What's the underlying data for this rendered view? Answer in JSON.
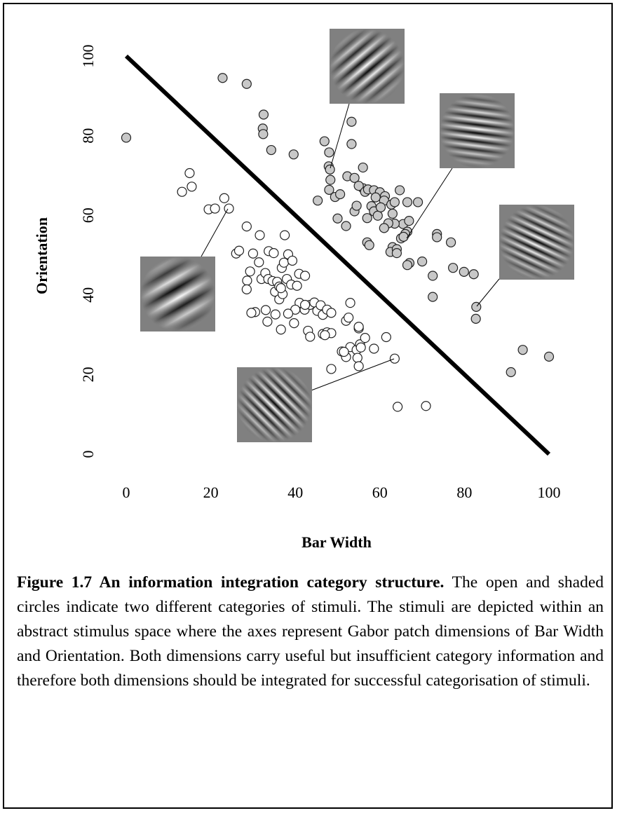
{
  "chart_data": {
    "type": "scatter",
    "xlabel": "Bar Width",
    "ylabel": "Orientation",
    "xlim": [
      0,
      100
    ],
    "ylim": [
      0,
      100
    ],
    "xticks": [
      0,
      20,
      40,
      60,
      80,
      100
    ],
    "yticks": [
      0,
      20,
      40,
      60,
      80,
      100
    ],
    "boundary": {
      "x": [
        0,
        100
      ],
      "y": [
        100,
        0
      ],
      "color": "#000000"
    },
    "series": [
      {
        "color": "#c8c8c8",
        "x": [
          0,
          22.8,
          28.5,
          32.5,
          32.3,
          32.4,
          34.3,
          39.6,
          46.9,
          48,
          47.9,
          48.2,
          48.3,
          48,
          49.4,
          45.3,
          50.6,
          52.3,
          53.3,
          53.3,
          56,
          54,
          56,
          55,
          56.5,
          57.2,
          58.6,
          60,
          61.2,
          59,
          58,
          58.6,
          57,
          59.5,
          61,
          60.2,
          62.7,
          63.5,
          64.7,
          66.5,
          65.5,
          66.9,
          63,
          63.5,
          62,
          61,
          63,
          62.5,
          64,
          65,
          64,
          66.5,
          66,
          65.6,
          67,
          66.5,
          69,
          70,
          72.5,
          73.5,
          73.5,
          76.8,
          77.3,
          79.9,
          82.2,
          72.5,
          82.8,
          82.7,
          93.8,
          91,
          100,
          52,
          54,
          54.5,
          50,
          57,
          57.5
        ],
        "y": [
          79.5,
          94.5,
          93,
          85.3,
          81.8,
          80.4,
          76.4,
          75.3,
          78.6,
          75.8,
          72.3,
          71.5,
          68.9,
          66.4,
          64.6,
          63.7,
          65.3,
          69.8,
          83.5,
          77.9,
          72,
          69.4,
          66.8,
          67.4,
          65.9,
          66.5,
          66.3,
          65.8,
          64.8,
          64.5,
          62.3,
          61,
          59.3,
          59.9,
          63.7,
          62,
          62.7,
          63.3,
          66.3,
          63.3,
          57.8,
          58.6,
          60.4,
          57.9,
          58,
          56.8,
          52,
          50.8,
          51.5,
          54.2,
          50.5,
          55.9,
          55.3,
          54.6,
          48,
          47.5,
          63.3,
          48.4,
          44.8,
          55.3,
          54.5,
          53.2,
          46.8,
          45.8,
          45.2,
          39.5,
          37,
          34,
          26.2,
          20.6,
          24.5,
          57.3,
          61,
          62.4,
          59.2,
          53.2,
          52.5
        ]
      },
      {
        "color": "#ffffff",
        "x": [
          15,
          15.5,
          13.2,
          19.5,
          21,
          23.2,
          24.3,
          28.5,
          31.6,
          37.5,
          26,
          26.7,
          30,
          33.7,
          34.9,
          36.8,
          37.3,
          38.3,
          39.3,
          28.6,
          28.5,
          29.3,
          31.4,
          32,
          32.9,
          33.6,
          34.6,
          35.2,
          35.7,
          36.2,
          36.2,
          37,
          36.6,
          38,
          39,
          40.9,
          42.3,
          40.4,
          41,
          42.2,
          43.5,
          44.5,
          45.2,
          46,
          46.5,
          47.5,
          48.5,
          42.3,
          40,
          39.7,
          38.3,
          35.3,
          33,
          30.5,
          29.6,
          33.4,
          36.6,
          43,
          43.5,
          46.5,
          47.5,
          48.5,
          47,
          52,
          53,
          52.6,
          55,
          53,
          54.5,
          55.3,
          56.5,
          51,
          52,
          54.7,
          55.5,
          55,
          58.6,
          61.5,
          48.5,
          63.5,
          64.2,
          70.9,
          55,
          51.5
        ],
        "y": [
          70.6,
          67.2,
          65.9,
          61.5,
          61.7,
          64.3,
          61.7,
          57.2,
          55,
          55,
          50.4,
          51.1,
          50.4,
          51,
          50.5,
          46.8,
          48.1,
          50.2,
          48.6,
          43.6,
          41.4,
          45.9,
          48.2,
          44,
          45.5,
          44,
          43.5,
          40.8,
          43.3,
          42.1,
          38.9,
          40.2,
          41.7,
          44,
          42.6,
          45.3,
          44.8,
          42.3,
          38,
          36.3,
          37.5,
          38.1,
          36,
          37.4,
          35,
          36.3,
          35.5,
          37.5,
          36.3,
          32.9,
          35.3,
          35.1,
          36.2,
          35.7,
          35.5,
          33.3,
          31.3,
          31,
          29.5,
          30.2,
          30.6,
          30.4,
          29.9,
          33.5,
          38,
          34.3,
          31.6,
          26.9,
          26.2,
          27.6,
          29.2,
          25.8,
          24.4,
          24.2,
          26.8,
          22.1,
          26.5,
          29.4,
          21.4,
          24,
          11.9,
          12.1,
          32,
          25.7
        ]
      }
    ]
  },
  "caption": {
    "label": "Figure 1.7 An information integration category structure.",
    "text": "The open and shaded circles indicate two different categories of stimuli. The stimuli are depicted within an abstract stimulus space where the axes represent Gabor patch dimensions of Bar Width and Orientation. Both dimensions carry useful but insufficient category information and therefore both dimensions should be integrated for successful categorisation of stimuli."
  }
}
